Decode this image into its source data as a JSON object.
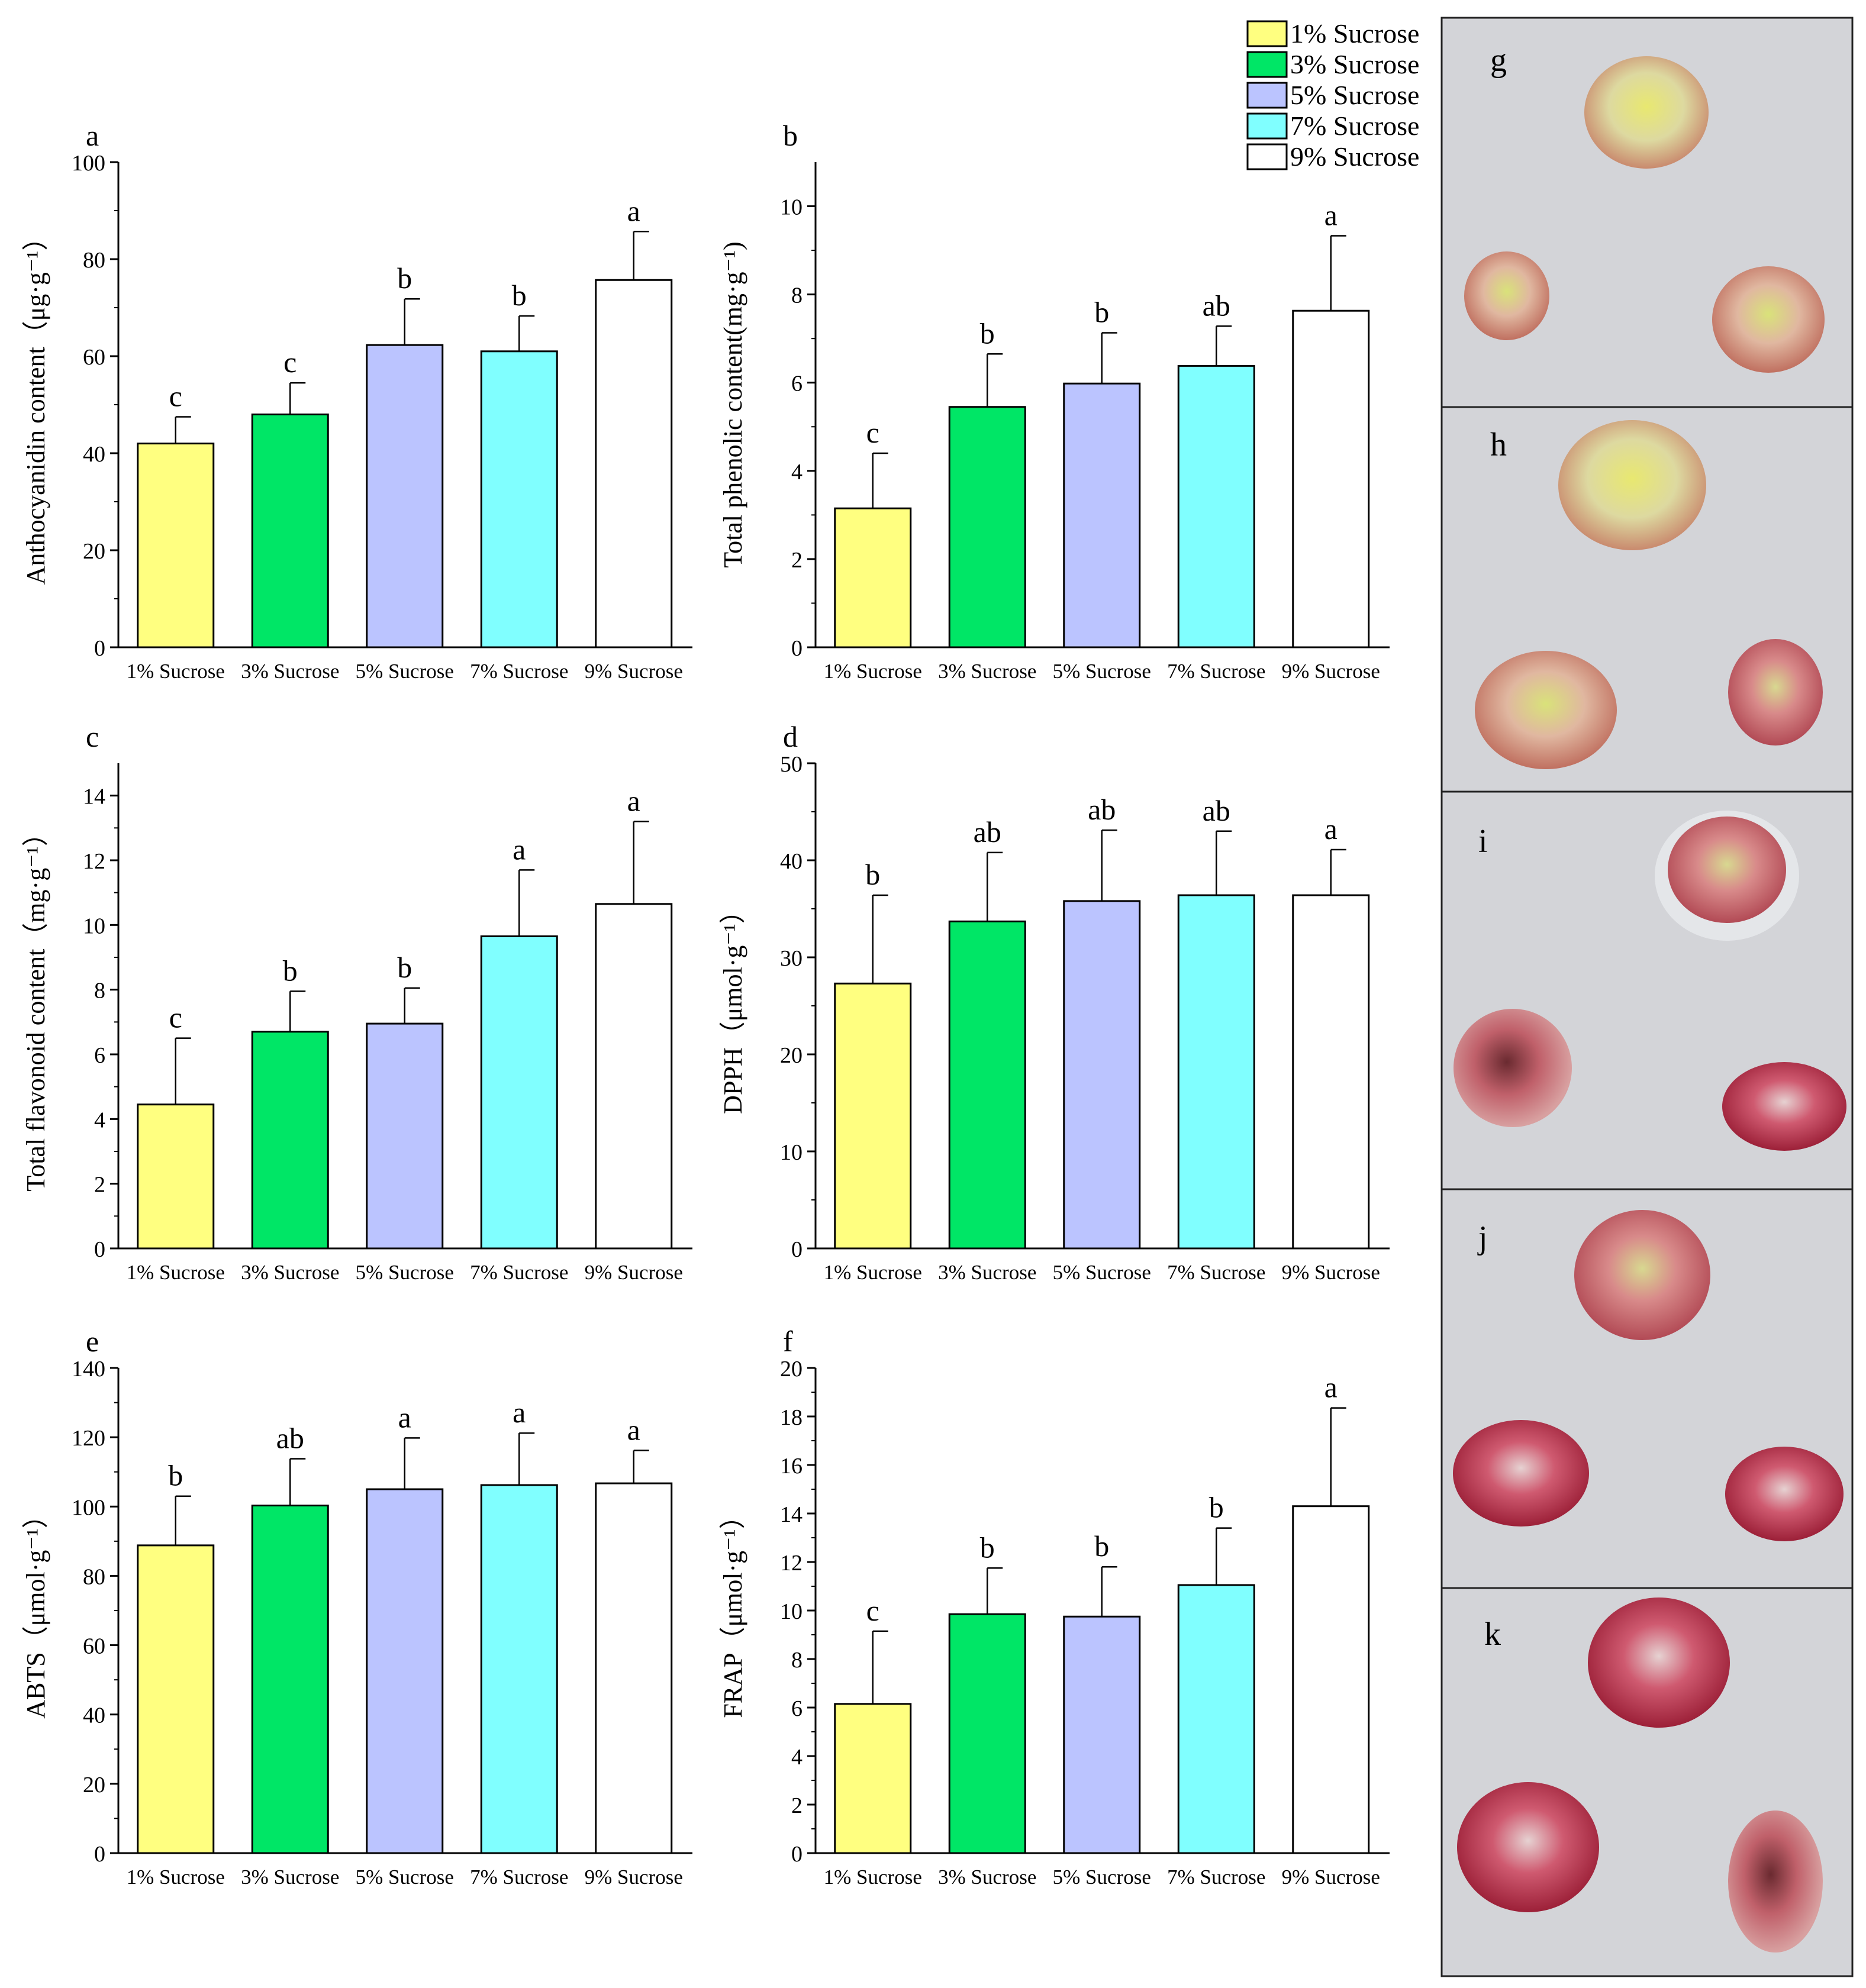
{
  "categories": [
    "1% Sucrose",
    "3% Sucrose",
    "5% Sucrose",
    "7% Sucrose",
    "9% Sucrose"
  ],
  "colors": [
    "#FFFF80",
    "#00E666",
    "#BBC4FF",
    "#80FFFF",
    "#FFFFFF"
  ],
  "legend": {
    "entries": [
      "1% Sucrose",
      "3% Sucrose",
      "5% Sucrose",
      "7% Sucrose",
      "9% Sucrose"
    ],
    "placement": "top-right"
  },
  "chart_data": [
    {
      "panel": "a",
      "type": "bar",
      "ylabel": "Anthocyanidin content（μg·g⁻¹）",
      "ylim": [
        0,
        100
      ],
      "yticks": [
        0,
        20,
        40,
        60,
        80,
        100
      ],
      "values": [
        42,
        48,
        62.3,
        61,
        75.7
      ],
      "errors": [
        5.5,
        6.5,
        9.5,
        7.3,
        10
      ],
      "letters": [
        "c",
        "c",
        "b",
        "b",
        "a"
      ]
    },
    {
      "panel": "b",
      "type": "bar",
      "ylabel": "Total phenolic content(mg·g⁻¹)",
      "ylim": [
        0,
        11
      ],
      "yticks": [
        0,
        2,
        4,
        6,
        8,
        10
      ],
      "values": [
        3.15,
        5.45,
        5.98,
        6.38,
        7.63
      ],
      "errors": [
        1.25,
        1.2,
        1.15,
        0.9,
        1.7
      ],
      "letters": [
        "c",
        "b",
        "b",
        "ab",
        "a"
      ]
    },
    {
      "panel": "c",
      "type": "bar",
      "ylabel": "Total flavonoid content（mg·g⁻¹）",
      "ylim": [
        0,
        15
      ],
      "yticks": [
        0,
        2,
        4,
        6,
        8,
        10,
        12,
        14
      ],
      "values": [
        4.45,
        6.7,
        6.95,
        9.65,
        10.65
      ],
      "errors": [
        2.05,
        1.25,
        1.1,
        2.05,
        2.55
      ],
      "letters": [
        "c",
        "b",
        "b",
        "a",
        "a"
      ]
    },
    {
      "panel": "d",
      "type": "bar",
      "ylabel": "DPPH（μmol·g⁻¹）",
      "ylim": [
        0,
        50
      ],
      "yticks": [
        0,
        10,
        20,
        30,
        40,
        50
      ],
      "values": [
        27.3,
        33.7,
        35.8,
        36.4,
        36.4
      ],
      "errors": [
        9.1,
        7.1,
        7.3,
        6.6,
        4.7
      ],
      "letters": [
        "b",
        "ab",
        "ab",
        "ab",
        "a"
      ]
    },
    {
      "panel": "e",
      "type": "bar",
      "ylabel": "ABTS（μmol·g⁻¹）",
      "ylim": [
        0,
        140
      ],
      "yticks": [
        0,
        20,
        40,
        60,
        80,
        100,
        120,
        140
      ],
      "values": [
        88.8,
        100.3,
        105,
        106.2,
        106.7
      ],
      "errors": [
        14.2,
        13.5,
        14.8,
        15,
        9.5
      ],
      "letters": [
        "b",
        "ab",
        "a",
        "a",
        "a"
      ]
    },
    {
      "panel": "f",
      "type": "bar",
      "ylabel": "FRAP（μmol·g⁻¹）",
      "ylim": [
        0,
        20
      ],
      "yticks": [
        0,
        2,
        4,
        6,
        8,
        10,
        12,
        14,
        16,
        18,
        20
      ],
      "values": [
        6.15,
        9.85,
        9.75,
        11.05,
        14.3
      ],
      "errors": [
        3.0,
        1.9,
        2.05,
        2.35,
        4.05
      ],
      "letters": [
        "c",
        "b",
        "b",
        "b",
        "a"
      ]
    }
  ],
  "photos": [
    {
      "label": "g",
      "icon": "callus-photo"
    },
    {
      "label": "h",
      "icon": "callus-photo"
    },
    {
      "label": "i",
      "icon": "callus-photo"
    },
    {
      "label": "j",
      "icon": "callus-photo"
    },
    {
      "label": "k",
      "icon": "callus-photo"
    }
  ]
}
